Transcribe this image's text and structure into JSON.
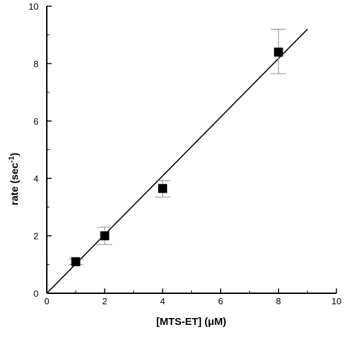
{
  "chart_data": {
    "type": "scatter",
    "xlabel": "[MTS-ET] (μM)",
    "ylabel_main": "rate (sec",
    "ylabel_sup": "-1",
    "ylabel_close": ")",
    "xlim": [
      0,
      10
    ],
    "ylim": [
      0,
      10
    ],
    "x_ticks": [
      0,
      2,
      4,
      6,
      8,
      10
    ],
    "y_ticks": [
      0,
      2,
      4,
      6,
      8,
      10
    ],
    "x_tick_labels": [
      "0",
      "2",
      "4",
      "6",
      "8",
      "10"
    ],
    "y_tick_labels": [
      "0",
      "2",
      "4",
      "6",
      "8",
      "10"
    ],
    "grid": false,
    "series": [
      {
        "points": [
          {
            "x": 1,
            "y": 1.1,
            "err_low": 1.0,
            "err_high": 1.2
          },
          {
            "x": 2,
            "y": 2.0,
            "err_low": 1.7,
            "err_high": 2.3
          },
          {
            "x": 4,
            "y": 3.65,
            "err_low": 3.35,
            "err_high": 3.92
          },
          {
            "x": 8,
            "y": 8.4,
            "err_low": 7.65,
            "err_high": 9.2
          }
        ]
      }
    ],
    "fit_line": {
      "x": [
        0,
        9
      ],
      "y": [
        0,
        9.2
      ]
    },
    "marker_color": "#000000",
    "errorbar_color": "#888888"
  }
}
